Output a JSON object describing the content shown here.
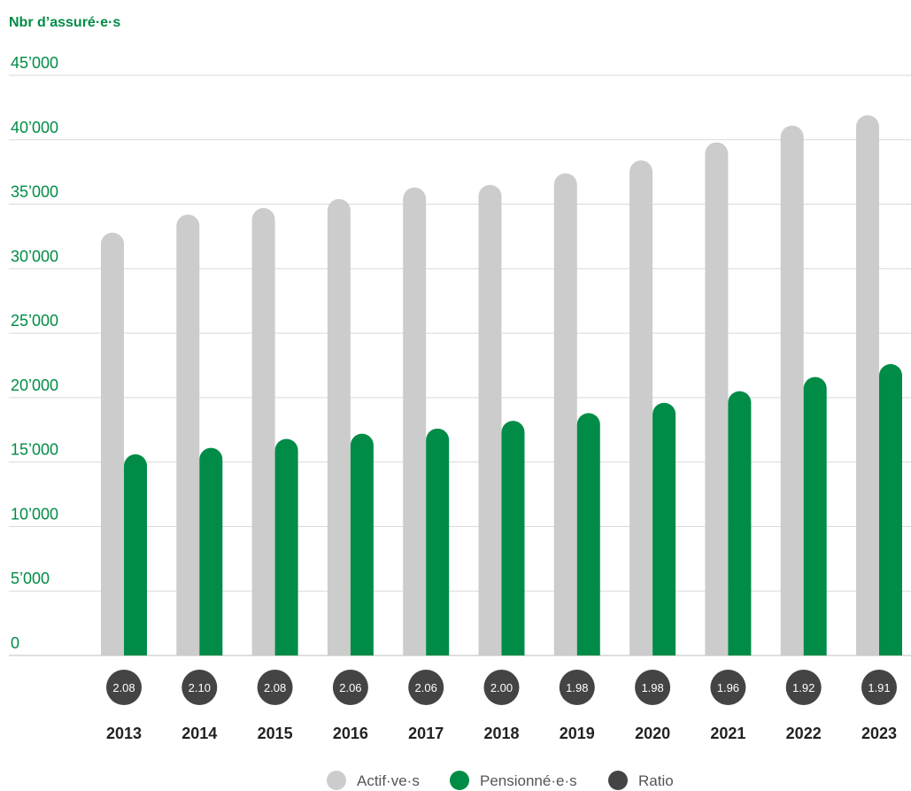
{
  "chart_data": {
    "type": "bar",
    "title": "",
    "ylabel": "Nbr d’assuré·e·s",
    "xlabel": "",
    "ylim": [
      0,
      45000
    ],
    "yticks": [
      0,
      5000,
      10000,
      15000,
      20000,
      25000,
      30000,
      35000,
      40000,
      45000
    ],
    "ytick_labels": [
      "0",
      "5’000",
      "10’000",
      "15’000",
      "20’000",
      "25’000",
      "30’000",
      "35’000",
      "40’000",
      "45’000"
    ],
    "grid": true,
    "legend_position": "bottom-center",
    "categories": [
      "2013",
      "2014",
      "2015",
      "2016",
      "2017",
      "2018",
      "2019",
      "2020",
      "2021",
      "2022",
      "2023"
    ],
    "series": [
      {
        "name": "Actif·ve·s",
        "color": "#cccccc",
        "values": [
          32800,
          34200,
          34700,
          35400,
          36300,
          36500,
          37400,
          38400,
          39800,
          41100,
          41900
        ]
      },
      {
        "name": "Pensionné·e·s",
        "color": "#008c46",
        "values": [
          15600,
          16100,
          16800,
          17200,
          17600,
          18200,
          18800,
          19600,
          20500,
          21600,
          22600
        ]
      }
    ],
    "ratio": {
      "name": "Ratio",
      "color": "#444444",
      "values": [
        "2.08",
        "2.10",
        "2.08",
        "2.06",
        "2.06",
        "2.00",
        "1.98",
        "1.98",
        "1.96",
        "1.92",
        "1.91"
      ]
    },
    "colors": {
      "axis_text": "#008c46",
      "grid": "#d9d9d9"
    }
  }
}
